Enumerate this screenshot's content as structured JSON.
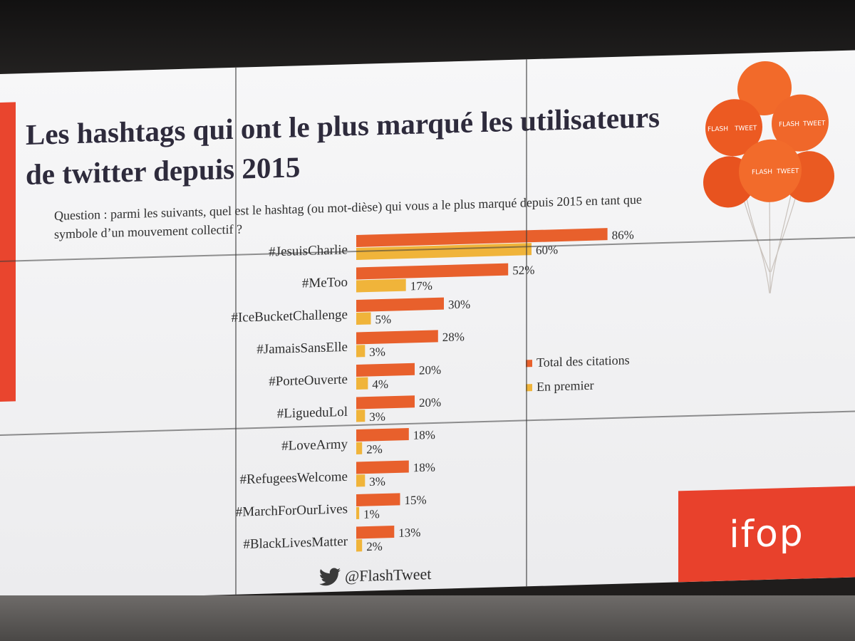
{
  "slide": {
    "title": "Les hashtags qui ont le plus marqué les utilisateurs de twitter depuis 2015",
    "question": "Question :  parmi les suivants, quel est le hashtag (ou mot-dièse) qui vous a le plus marqué depuis 2015 en tant que symbole d’un mouvement collectif ?",
    "footer_handle": "@FlashTweet",
    "logo_text": "ifop",
    "balloon_text": [
      "FLASH",
      "TWEET"
    ]
  },
  "colors": {
    "total": "#e8602c",
    "first": "#f0b43a",
    "accent_red": "#e9452e",
    "text": "#2e2b3c"
  },
  "chart_data": {
    "type": "bar",
    "orientation": "horizontal",
    "categories": [
      "#JesuisCharlie",
      "#MeToo",
      "#IceBucketChallenge",
      "#JamaisSansElle",
      "#PorteOuverte",
      "#LigueduLol",
      "#LoveArmy",
      "#RefugeesWelcome",
      "#MarchForOurLives",
      "#BlackLivesMatter"
    ],
    "series": [
      {
        "name": "Total des citations",
        "values": [
          86,
          52,
          30,
          28,
          20,
          20,
          18,
          18,
          15,
          13
        ],
        "labels": [
          "86%",
          "52%",
          "30%",
          "28%",
          "20%",
          "20%",
          "18%",
          "18%",
          "15%",
          "13%"
        ]
      },
      {
        "name": "En premier",
        "values": [
          60,
          17,
          5,
          3,
          4,
          3,
          2,
          3,
          1,
          2
        ],
        "labels": [
          "60%",
          "17%",
          "5%",
          "3%",
          "4%",
          "3%",
          "2%",
          "3%",
          "1%",
          "2%"
        ]
      }
    ],
    "xlim": [
      0,
      100
    ],
    "legend": "right-middle",
    "grid": false
  }
}
